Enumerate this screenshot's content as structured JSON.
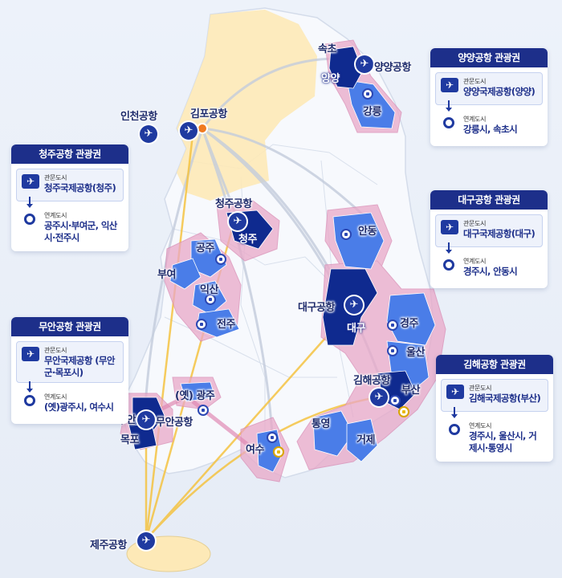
{
  "colors": {
    "background": "#e9eef7",
    "land": "#f5f7fb",
    "capital_region": "#fde9b7",
    "zone_halo": "#e9a8c8",
    "entry_city": "#0f2a8f",
    "linked_city": "#4a7de8",
    "card_header": "#1d2f8a",
    "route_yellow": "#f5c342",
    "route_gray": "#c3ccdc"
  },
  "map_labels": {
    "sokcho": "속초",
    "yangyang": "양양",
    "gangneung": "강릉",
    "yangyang_airport": "양양공항",
    "incheon_airport": "인천공항",
    "gimpo_airport": "김포공항",
    "cheongju_airport": "청주공항",
    "cheongju": "청주",
    "gongju": "공주",
    "buyeo": "부여",
    "iksan": "익산",
    "jeonju": "전주",
    "andong": "안동",
    "daegu_airport": "대구공항",
    "daegu": "대구",
    "gyeongju": "경주",
    "ulsan": "울산",
    "gimhae_airport": "김해공항",
    "busan": "부산",
    "tongyeong": "통영",
    "geoje": "거제",
    "gwangju": "(옛) 광주",
    "muan": "무안",
    "muan_airport": "무안공항",
    "mokpo": "목포",
    "yeosu": "여수",
    "jeju_airport": "제주공항"
  },
  "icons": {
    "airport": "airplane-icon",
    "city": "city-pin-icon",
    "port_city": "coastal-city-pin-icon",
    "hub": "hub-dot-icon"
  },
  "cards": {
    "yangyang": {
      "title": "양양공항 관광권",
      "entry_caption": "관문도시",
      "entry_value": "양양국제공항(양양)",
      "linked_caption": "연계도시",
      "linked_value": "강릉시, 속초시"
    },
    "cheongju": {
      "title": "청주공항 관광권",
      "entry_caption": "관문도시",
      "entry_value": "청주국제공항(청주)",
      "linked_caption": "연계도시",
      "linked_value": "공주시·부여군, 익산시·전주시"
    },
    "daegu": {
      "title": "대구공항 관광권",
      "entry_caption": "관문도시",
      "entry_value": "대구국제공항(대구)",
      "linked_caption": "연계도시",
      "linked_value": "경주시, 안동시"
    },
    "muan": {
      "title": "무안공항 관광권",
      "entry_caption": "관문도시",
      "entry_value": "무안국제공항 (무안군·목포시)",
      "linked_caption": "연계도시",
      "linked_value": "(옛)광주시, 여수시"
    },
    "gimhae": {
      "title": "김해공항 관광권",
      "entry_caption": "관문도시",
      "entry_value": "김해국제공항(부산)",
      "linked_caption": "연계도시",
      "linked_value": "경주시, 울산시, 거제시·통영시"
    }
  }
}
